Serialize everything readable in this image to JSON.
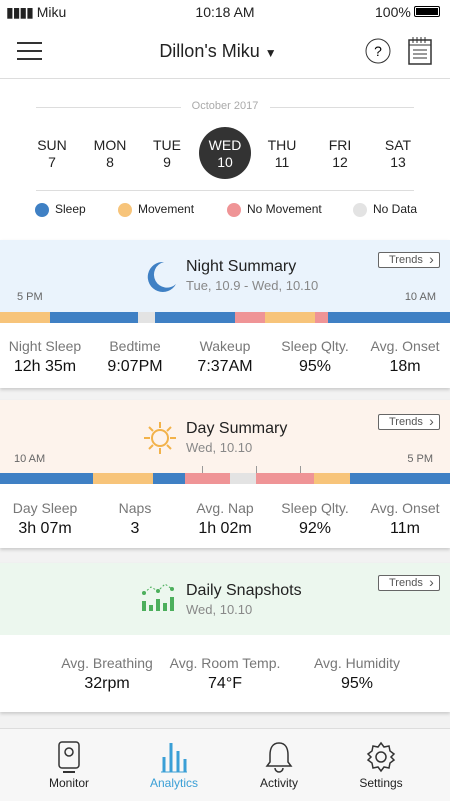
{
  "status_bar": {
    "carrier": "Miku",
    "time": "10:18 AM",
    "battery": "100%"
  },
  "header": {
    "title": "Dillon's Miku"
  },
  "calendar": {
    "month": "October 2017",
    "selected": 3,
    "days": [
      {
        "name": "SUN",
        "date": "7"
      },
      {
        "name": "MON",
        "date": "8"
      },
      {
        "name": "TUE",
        "date": "9"
      },
      {
        "name": "WED",
        "date": "10"
      },
      {
        "name": "THU",
        "date": "11"
      },
      {
        "name": "FRI",
        "date": "12"
      },
      {
        "name": "SAT",
        "date": "13"
      }
    ]
  },
  "legend": [
    {
      "label": "Sleep",
      "color": "#3f80c4"
    },
    {
      "label": "Movement",
      "color": "#f7c47a"
    },
    {
      "label": "No Movement",
      "color": "#ef9496"
    },
    {
      "label": "No Data",
      "color": "#e3e3e3"
    }
  ],
  "night_summary": {
    "title": "Night Summary",
    "subtitle": "Tue, 10.9 - Wed,  10.10",
    "trends": "Trends",
    "start": "5 PM",
    "end": "10 AM",
    "stats": [
      {
        "label": "Night Sleep",
        "value": "12h 35m"
      },
      {
        "label": "Bedtime",
        "value": "9:07PM"
      },
      {
        "label": "Wakeup",
        "value": "7:37AM"
      },
      {
        "label": "Sleep Qlty.",
        "value": "95%"
      },
      {
        "label": "Avg. Onset",
        "value": "18m"
      }
    ]
  },
  "day_summary": {
    "title": "Day Summary",
    "subtitle": "Wed, 10.10",
    "trends": "Trends",
    "start": "10 AM",
    "end": "5 PM",
    "stats": [
      {
        "label": "Day Sleep",
        "value": "3h 07m"
      },
      {
        "label": "Naps",
        "value": "3"
      },
      {
        "label": "Avg. Nap",
        "value": "1h 02m"
      },
      {
        "label": "Sleep Qlty.",
        "value": "92%"
      },
      {
        "label": "Avg. Onset",
        "value": "11m"
      }
    ]
  },
  "snapshots": {
    "title": "Daily Snapshots",
    "subtitle": "Wed, 10.10",
    "trends": "Trends",
    "stats": [
      {
        "label": "Avg. Breathing",
        "value": "32rpm"
      },
      {
        "label": "Avg. Room Temp.",
        "value": "74°F"
      },
      {
        "label": "Avg. Humidity",
        "value": "95%"
      }
    ]
  },
  "tab_bar": {
    "active": 1,
    "tabs": [
      "Monitor",
      "Analytics",
      "Activity",
      "Settings"
    ]
  }
}
